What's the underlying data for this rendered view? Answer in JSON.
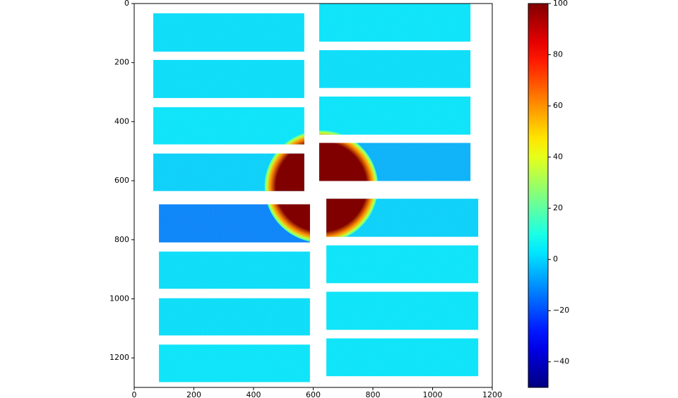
{
  "chart_data": {
    "type": "image",
    "xlim": [
      0,
      1200
    ],
    "ylim": [
      1300,
      0
    ],
    "xticks": [
      0,
      200,
      400,
      600,
      800,
      1000,
      1200
    ],
    "yticks": [
      0,
      200,
      400,
      600,
      800,
      1000,
      1200
    ],
    "colormap": "jet",
    "clim": [
      -50,
      100
    ],
    "cticks": [
      {
        "value": -40,
        "label": "−40"
      },
      {
        "value": -20,
        "label": "−20"
      },
      0,
      20,
      40,
      60,
      80,
      100
    ],
    "panels": [
      {
        "x": [
          64,
          570
        ],
        "y": [
          33,
          163
        ],
        "value": 2
      },
      {
        "x": [
          64,
          570
        ],
        "y": [
          191,
          320
        ],
        "value": 2
      },
      {
        "x": [
          64,
          570
        ],
        "y": [
          351,
          477
        ],
        "value": 3
      },
      {
        "x": [
          64,
          570
        ],
        "y": [
          508,
          635
        ],
        "value": 0
      },
      {
        "x": [
          620,
          1127
        ],
        "y": [
          0,
          129
        ],
        "value": 3
      },
      {
        "x": [
          620,
          1127
        ],
        "y": [
          158,
          286
        ],
        "value": 2
      },
      {
        "x": [
          620,
          1127
        ],
        "y": [
          315,
          444
        ],
        "value": 3
      },
      {
        "x": [
          620,
          1127
        ],
        "y": [
          472,
          601
        ],
        "value": -5
      },
      {
        "x": [
          83,
          589
        ],
        "y": [
          680,
          809
        ],
        "value": -12
      },
      {
        "x": [
          83,
          589
        ],
        "y": [
          840,
          966
        ],
        "value": 2
      },
      {
        "x": [
          83,
          589
        ],
        "y": [
          998,
          1124
        ],
        "value": 2
      },
      {
        "x": [
          83,
          589
        ],
        "y": [
          1155,
          1282
        ],
        "value": 3
      },
      {
        "x": [
          644,
          1153
        ],
        "y": [
          661,
          790
        ],
        "value": 0
      },
      {
        "x": [
          644,
          1153
        ],
        "y": [
          819,
          947
        ],
        "value": 3
      },
      {
        "x": [
          644,
          1153
        ],
        "y": [
          976,
          1105
        ],
        "value": 3
      },
      {
        "x": [
          644,
          1153
        ],
        "y": [
          1134,
          1262
        ],
        "value": 3
      }
    ],
    "hotspot": {
      "x": 627,
      "y": 620,
      "r": 190,
      "value": 100
    }
  }
}
